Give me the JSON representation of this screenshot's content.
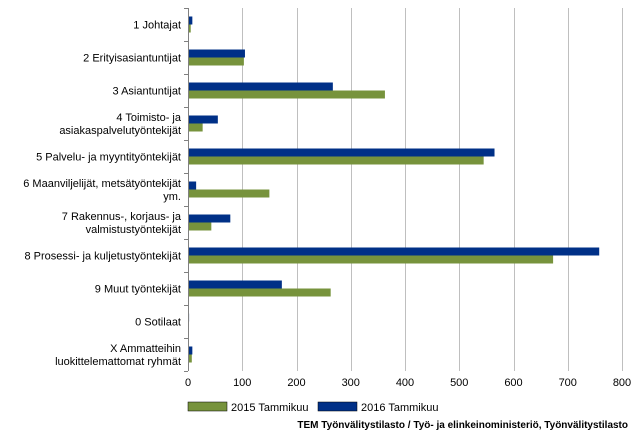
{
  "chart_data": {
    "type": "bar",
    "orientation": "horizontal",
    "categories": [
      [
        "1 Johtajat"
      ],
      [
        "2 Erityisasiantuntijat"
      ],
      [
        "3 Asiantuntijat"
      ],
      [
        "4 Toimisto- ja",
        "asiakaspalvelutyöntekijät"
      ],
      [
        "5 Palvelu- ja myyntityöntekijät"
      ],
      [
        "6 Maanviljelijät, metsätyöntekijät",
        "ym."
      ],
      [
        "7 Rakennus-, korjaus- ja",
        "valmistustyöntekijät"
      ],
      [
        "8 Prosessi- ja kuljetustyöntekijät"
      ],
      [
        "9 Muut työntekijät"
      ],
      [
        "0 Sotilaat"
      ],
      [
        "X Ammatteihin",
        "luokittelemattomat ryhmät"
      ]
    ],
    "series": [
      {
        "name": "2016 Tammikuu",
        "color": "#003087",
        "values": [
          8,
          105,
          267,
          55,
          565,
          15,
          78,
          758,
          173,
          2,
          8
        ]
      },
      {
        "name": "2015 Tammikuu",
        "color": "#77933c",
        "values": [
          5,
          103,
          363,
          27,
          545,
          150,
          43,
          673,
          263,
          1,
          7
        ]
      }
    ],
    "legend_order": [
      "2015 Tammikuu",
      "2016 Tammikuu"
    ],
    "xlim": [
      0,
      800
    ],
    "xticks": [
      0,
      100,
      200,
      300,
      400,
      500,
      600,
      700,
      800
    ],
    "grid": true,
    "legend_position": "bottom",
    "source": "TEM Työnvälitystilasto / Työ- ja elinkeinoministeriö, Työnvälitystilasto"
  }
}
